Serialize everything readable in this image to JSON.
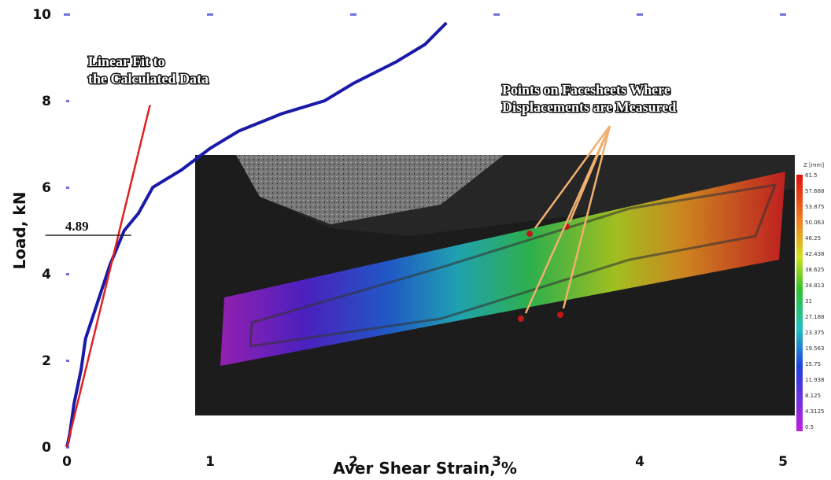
{
  "chart_data": {
    "type": "line",
    "x_label": "Aver Shear Strain, %",
    "y_label": "Load, kN",
    "xlim": [
      0,
      5
    ],
    "xticks": [
      0,
      1,
      2,
      3,
      4,
      5
    ],
    "ylim": [
      0,
      10
    ],
    "yticks": [
      0,
      2,
      4,
      6,
      8,
      10
    ],
    "series": [
      {
        "color": "#1a1aa8",
        "x": [
          0,
          0.02,
          0.05,
          0.1,
          0.13,
          0.2,
          0.3,
          0.4,
          0.5,
          0.6,
          0.8,
          1.0,
          1.2,
          1.5,
          1.8,
          2.0,
          2.3,
          2.5,
          2.65
        ],
        "values": [
          0,
          0.3,
          1.0,
          1.8,
          2.5,
          3.2,
          4.2,
          5.0,
          5.4,
          6.0,
          6.4,
          6.9,
          7.3,
          7.7,
          8.0,
          8.4,
          8.9,
          9.3,
          9.8
        ]
      },
      {
        "color": "#e02020",
        "x": [
          0,
          0.58
        ],
        "values": [
          0,
          7.9
        ]
      }
    ],
    "reference_value": 4.89,
    "annotations": [
      "Linear Fit to the Calculated Data",
      "Points on Facesheets Where Displacements are Measured"
    ],
    "colorbar": {
      "title": "Z [mm]",
      "labels": [
        "61.5",
        "57.688",
        "53.875",
        "50.063",
        "46.25",
        "42.438",
        "38.625",
        "34.813",
        "31",
        "27.188",
        "23.375",
        "19.563",
        "15.75",
        "11.938",
        "8.125",
        "4.3125",
        "0.5"
      ]
    }
  }
}
